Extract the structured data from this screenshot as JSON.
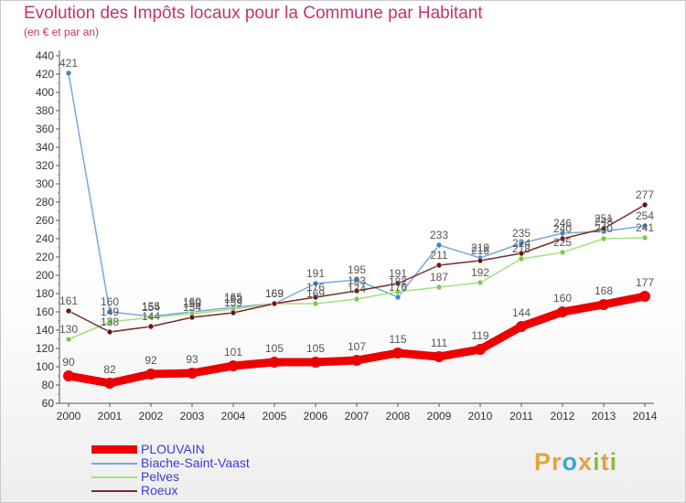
{
  "header": {
    "title": "Evolution des Impôts locaux pour la Commune par Habitant",
    "subtitle": "(en € et par an)"
  },
  "colors": {
    "title": "#c3336b",
    "legend_text": "#3b3bd9",
    "axis_text": "#333333",
    "value_label": "#555555"
  },
  "logo": {
    "letters": [
      {
        "char": "P",
        "color": "#e8a13c"
      },
      {
        "char": "r",
        "color": "#e8a13c"
      },
      {
        "char": "o",
        "color": "#3aa7d8"
      },
      {
        "char": "x",
        "color": "#e8a13c"
      },
      {
        "char": "i",
        "color": "#8bbf3c"
      },
      {
        "char": "t",
        "color": "#e8a13c"
      },
      {
        "char": "i",
        "color": "#8bbf3c"
      }
    ]
  },
  "chart_data": {
    "type": "line",
    "title": "Evolution des Impôts locaux pour la Commune par Habitant",
    "subtitle": "(en € et par an)",
    "x": [
      "2000",
      "2001",
      "2002",
      "2003",
      "2004",
      "2005",
      "2006",
      "2007",
      "2008",
      "2009",
      "2010",
      "2011",
      "2012",
      "2013",
      "2014"
    ],
    "y_ticks": [
      "60",
      "80",
      "100",
      "120",
      "140",
      "160",
      "180",
      "200",
      "220",
      "240",
      "260",
      "280",
      "300",
      "320",
      "340",
      "360",
      "380",
      "400",
      "420",
      "440"
    ],
    "ylim": [
      60,
      440
    ],
    "grid": false,
    "legend_position": "bottom-left",
    "series": [
      {
        "name": "PLOUVAIN",
        "color": "#ee0000",
        "marker": "#ee0000",
        "width": 9,
        "values": [
          90,
          82,
          92,
          93,
          101,
          105,
          105,
          107,
          115,
          111,
          119,
          144,
          160,
          168,
          177
        ],
        "labels": [
          "90",
          "82",
          "92",
          "93",
          "101",
          "105",
          "105",
          "107",
          "115",
          "111",
          "119",
          "144",
          "160",
          "168",
          "177"
        ]
      },
      {
        "name": "Biache-Saint-Vaast",
        "color": "#79a9dd",
        "marker": "#3a86c8",
        "width": 1.5,
        "values": [
          421,
          160,
          155,
          160,
          165,
          169,
          191,
          195,
          176,
          233,
          219,
          235,
          246,
          248,
          254
        ],
        "labels": [
          "421",
          "160",
          "155",
          "160",
          "165",
          "169",
          "191",
          "195",
          "176",
          "233",
          "219",
          "235",
          "246",
          "248",
          "254"
        ]
      },
      {
        "name": "Pelves",
        "color": "#a6e07a",
        "marker": "#7cc84a",
        "width": 1.5,
        "values": [
          130,
          149,
          154,
          158,
          163,
          169,
          169,
          174,
          182,
          187,
          192,
          218,
          225,
          240,
          241
        ],
        "labels": [
          "130",
          "149",
          "154",
          "158",
          "163",
          "169",
          "169",
          "174",
          "182",
          "187",
          "192",
          "218",
          "225",
          "240",
          "241"
        ]
      },
      {
        "name": "Roeux",
        "color": "#7b2a2a",
        "marker": "#6a1414",
        "width": 1.5,
        "values": [
          161,
          138,
          144,
          154,
          159,
          169,
          176,
          183,
          191,
          211,
          216,
          224,
          240,
          251,
          277
        ],
        "labels": [
          "161",
          "138",
          "144",
          "154",
          "159",
          "169",
          "176",
          "183",
          "191",
          "211",
          "216",
          "224",
          "240",
          "251",
          "277"
        ]
      }
    ]
  }
}
